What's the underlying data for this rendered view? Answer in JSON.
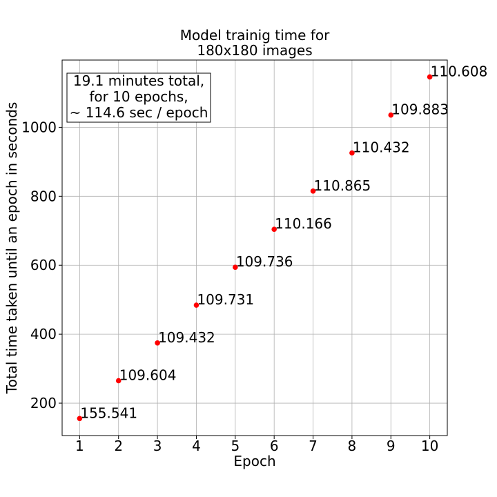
{
  "chart_data": {
    "type": "scatter",
    "title": [
      "Model trainig time for",
      "180x180 images"
    ],
    "xlabel": "Epoch",
    "ylabel": "Total time taken until an epoch in seconds",
    "x": [
      1,
      2,
      3,
      4,
      5,
      6,
      7,
      8,
      9,
      10
    ],
    "y": [
      155.541,
      265.145,
      374.577,
      484.308,
      594.044,
      704.21,
      815.075,
      925.507,
      1035.39,
      1145.998
    ],
    "point_labels": [
      "155.541",
      "109.604",
      "109.432",
      "109.731",
      "109.736",
      "110.166",
      "110.865",
      "110.432",
      "109.883",
      "110.608"
    ],
    "xlim": [
      0.55,
      10.45
    ],
    "ylim": [
      106,
      1195
    ],
    "xticks": [
      1,
      2,
      3,
      4,
      5,
      6,
      7,
      8,
      9,
      10
    ],
    "yticks": [
      200,
      400,
      600,
      800,
      1000
    ],
    "grid": true,
    "marker_color": "#ff0000",
    "annotation": [
      "19.1 minutes total,",
      "for 10 epochs,",
      "~ 114.6 sec / epoch"
    ],
    "annotation_position": "top-left"
  }
}
